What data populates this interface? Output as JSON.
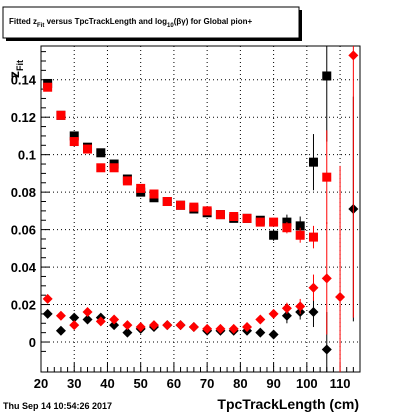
{
  "header": {
    "title_parts": [
      "Fitted ",
      "z",
      "Fit",
      " versus TpcTrackLength and log",
      "10",
      "(βγ) for Global pion+"
    ]
  },
  "footer": {
    "timestamp": "Thu Sep 14 10:54:26 2017"
  },
  "colors": {
    "series_black": "#000000",
    "series_red": "#ff0000",
    "grid": "#000000",
    "background": "#ffffff"
  },
  "chart_data": {
    "type": "scatter",
    "xlabel": "TpcTrackLength (cm)",
    "ylabel_base": "z",
    "ylabel_sub": "Fit",
    "xlim": [
      20,
      116
    ],
    "ylim": [
      -0.016,
      0.158
    ],
    "xticks": [
      20,
      30,
      40,
      50,
      60,
      70,
      80,
      90,
      100,
      110
    ],
    "yticks": [
      0,
      0.02,
      0.04,
      0.06,
      0.08,
      0.1,
      0.12,
      0.14
    ],
    "ytick_labels": [
      "0",
      "0.02",
      "0.04",
      "0.06",
      "0.08",
      "0.1",
      "0.12",
      "0.14"
    ],
    "grid": true,
    "series": [
      {
        "marker": "square",
        "color": "black",
        "points": [
          {
            "x": 22,
            "y": 0.138,
            "err": 0.002
          },
          {
            "x": 26,
            "y": 0.121,
            "err": 0.001
          },
          {
            "x": 30,
            "y": 0.11,
            "err": 0.0015
          },
          {
            "x": 34,
            "y": 0.104,
            "err": 0.001
          },
          {
            "x": 38,
            "y": 0.101,
            "err": 0.001
          },
          {
            "x": 42,
            "y": 0.095,
            "err": 0.001
          },
          {
            "x": 46,
            "y": 0.087,
            "err": 0.001
          },
          {
            "x": 50,
            "y": 0.08,
            "err": 0.001
          },
          {
            "x": 54,
            "y": 0.077,
            "err": 0.001
          },
          {
            "x": 58,
            "y": 0.075,
            "err": 0.001
          },
          {
            "x": 62,
            "y": 0.073,
            "err": 0.001
          },
          {
            "x": 66,
            "y": 0.071,
            "err": 0.001
          },
          {
            "x": 70,
            "y": 0.069,
            "err": 0.001
          },
          {
            "x": 74,
            "y": 0.068,
            "err": 0.001
          },
          {
            "x": 78,
            "y": 0.066,
            "err": 0.001
          },
          {
            "x": 82,
            "y": 0.066,
            "err": 0.001
          },
          {
            "x": 86,
            "y": 0.065,
            "err": 0.002
          },
          {
            "x": 90,
            "y": 0.057,
            "err": 0.003
          },
          {
            "x": 94,
            "y": 0.064,
            "err": 0.004
          },
          {
            "x": 98,
            "y": 0.062,
            "err": 0.005
          },
          {
            "x": 102,
            "y": 0.096,
            "err": 0.015
          },
          {
            "x": 106,
            "y": 0.142,
            "err": 0.035
          }
        ]
      },
      {
        "marker": "square",
        "color": "red",
        "points": [
          {
            "x": 22,
            "y": 0.136,
            "err": 0.002
          },
          {
            "x": 26,
            "y": 0.121,
            "err": 0.001
          },
          {
            "x": 30,
            "y": 0.107,
            "err": 0.001
          },
          {
            "x": 34,
            "y": 0.103,
            "err": 0.001
          },
          {
            "x": 38,
            "y": 0.093,
            "err": 0.001
          },
          {
            "x": 42,
            "y": 0.093,
            "err": 0.001
          },
          {
            "x": 46,
            "y": 0.086,
            "err": 0.001
          },
          {
            "x": 50,
            "y": 0.082,
            "err": 0.001
          },
          {
            "x": 54,
            "y": 0.079,
            "err": 0.001
          },
          {
            "x": 58,
            "y": 0.075,
            "err": 0.001
          },
          {
            "x": 62,
            "y": 0.073,
            "err": 0.001
          },
          {
            "x": 66,
            "y": 0.072,
            "err": 0.001
          },
          {
            "x": 70,
            "y": 0.07,
            "err": 0.001
          },
          {
            "x": 74,
            "y": 0.068,
            "err": 0.001
          },
          {
            "x": 78,
            "y": 0.067,
            "err": 0.001
          },
          {
            "x": 82,
            "y": 0.066,
            "err": 0.001
          },
          {
            "x": 86,
            "y": 0.064,
            "err": 0.001
          },
          {
            "x": 90,
            "y": 0.064,
            "err": 0.002
          },
          {
            "x": 94,
            "y": 0.061,
            "err": 0.003
          },
          {
            "x": 98,
            "y": 0.057,
            "err": 0.004
          },
          {
            "x": 102,
            "y": 0.056,
            "err": 0.006
          },
          {
            "x": 106,
            "y": 0.088,
            "err": 0.025
          }
        ]
      },
      {
        "marker": "diamond",
        "color": "black",
        "points": [
          {
            "x": 22,
            "y": 0.015,
            "err": 0.001
          },
          {
            "x": 26,
            "y": 0.006,
            "err": 0.001
          },
          {
            "x": 30,
            "y": 0.013,
            "err": 0.001
          },
          {
            "x": 34,
            "y": 0.012,
            "err": 0.001
          },
          {
            "x": 38,
            "y": 0.013,
            "err": 0.001
          },
          {
            "x": 42,
            "y": 0.009,
            "err": 0.001
          },
          {
            "x": 46,
            "y": 0.005,
            "err": 0.001
          },
          {
            "x": 50,
            "y": 0.007,
            "err": 0.001
          },
          {
            "x": 54,
            "y": 0.008,
            "err": 0.001
          },
          {
            "x": 58,
            "y": 0.009,
            "err": 0.001
          },
          {
            "x": 62,
            "y": 0.009,
            "err": 0.001
          },
          {
            "x": 66,
            "y": 0.008,
            "err": 0.001
          },
          {
            "x": 70,
            "y": 0.006,
            "err": 0.001
          },
          {
            "x": 74,
            "y": 0.006,
            "err": 0.001
          },
          {
            "x": 78,
            "y": 0.006,
            "err": 0.001
          },
          {
            "x": 82,
            "y": 0.006,
            "err": 0.001
          },
          {
            "x": 86,
            "y": 0.005,
            "err": 0.001
          },
          {
            "x": 90,
            "y": 0.004,
            "err": 0.002
          },
          {
            "x": 94,
            "y": 0.014,
            "err": 0.004
          },
          {
            "x": 98,
            "y": 0.016,
            "err": 0.004
          },
          {
            "x": 102,
            "y": 0.016,
            "err": 0.008
          },
          {
            "x": 106,
            "y": -0.004,
            "err": 0.02
          },
          {
            "x": 114,
            "y": 0.071,
            "err": 0.06
          }
        ]
      },
      {
        "marker": "diamond",
        "color": "red",
        "points": [
          {
            "x": 22,
            "y": 0.023,
            "err": 0.001
          },
          {
            "x": 26,
            "y": 0.014,
            "err": 0.001
          },
          {
            "x": 30,
            "y": 0.009,
            "err": 0.001
          },
          {
            "x": 34,
            "y": 0.016,
            "err": 0.001
          },
          {
            "x": 38,
            "y": 0.011,
            "err": 0.001
          },
          {
            "x": 42,
            "y": 0.012,
            "err": 0.001
          },
          {
            "x": 46,
            "y": 0.009,
            "err": 0.001
          },
          {
            "x": 50,
            "y": 0.008,
            "err": 0.001
          },
          {
            "x": 54,
            "y": 0.009,
            "err": 0.001
          },
          {
            "x": 58,
            "y": 0.009,
            "err": 0.001
          },
          {
            "x": 62,
            "y": 0.009,
            "err": 0.001
          },
          {
            "x": 66,
            "y": 0.008,
            "err": 0.001
          },
          {
            "x": 70,
            "y": 0.007,
            "err": 0.001
          },
          {
            "x": 74,
            "y": 0.007,
            "err": 0.001
          },
          {
            "x": 78,
            "y": 0.007,
            "err": 0.001
          },
          {
            "x": 82,
            "y": 0.008,
            "err": 0.001
          },
          {
            "x": 86,
            "y": 0.012,
            "err": 0.001
          },
          {
            "x": 90,
            "y": 0.015,
            "err": 0.002
          },
          {
            "x": 94,
            "y": 0.018,
            "err": 0.003
          },
          {
            "x": 98,
            "y": 0.019,
            "err": 0.004
          },
          {
            "x": 102,
            "y": 0.029,
            "err": 0.007
          },
          {
            "x": 106,
            "y": 0.034,
            "err": 0.03
          },
          {
            "x": 110,
            "y": 0.024,
            "err": 0.07
          },
          {
            "x": 114,
            "y": 0.153,
            "err": 0.14
          }
        ]
      }
    ]
  }
}
